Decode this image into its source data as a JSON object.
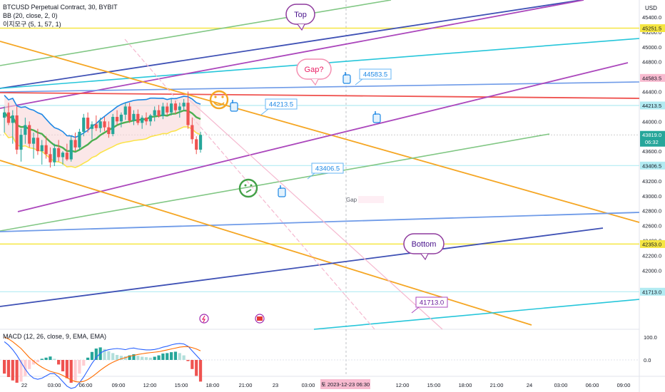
{
  "legend": {
    "line1": "BTCUSD Perpetual Contract, 30, BYBIT",
    "line2": "BB (20, close, 2, 0)",
    "line3": "이지모구 (5, 1, 57, 1)"
  },
  "macd_legend": "MACD (12, 26, close, 9, EMA, EMA)",
  "currency": "USD",
  "crosshair_label": "토 2023-12-23  06:30",
  "colors": {
    "up": "#26a69a",
    "down": "#ef5350",
    "bb_basis": "#4caf50",
    "bb_upper": "#1e88e5",
    "bb_lower": "#fbe34a",
    "bb_fill": "#f8d7d8",
    "yellow_level": "#f5e642",
    "orange": "#f5a623",
    "purple": "#ab47bc",
    "navy": "#3f51b5",
    "cyan": "#26c6da",
    "green": "#81c784",
    "blue": "#6f9be8",
    "red": "#ef5350",
    "pink": "#f5b8cf"
  },
  "chart_data": [
    {
      "type": "candlestick",
      "title": "BTCUSD Perpetual Contract, 30, BYBIT",
      "ylim": [
        41500,
        45700
      ],
      "y_ticks": [
        42000,
        42200,
        42400,
        42600,
        42800,
        43000,
        43200,
        43400,
        43600,
        43800,
        44000,
        44200,
        44400,
        44600,
        44800,
        45000,
        45200,
        45400
      ],
      "x_ticks": [
        "22",
        "03:00",
        "06:00",
        "09:00",
        "12:00",
        "15:00",
        "18:00",
        "21:00",
        "23",
        "03:00",
        "06:30",
        "12:00",
        "15:00",
        "18:00",
        "21:00",
        "24",
        "03:00",
        "06:00",
        "09:00"
      ],
      "price_labels": [
        {
          "value": 45251.5,
          "text": "45251.5",
          "kind": "yellow"
        },
        {
          "value": 44583.5,
          "text": "44583.5",
          "kind": "pink"
        },
        {
          "value": 44213.5,
          "text": "44213.5",
          "kind": "cyan"
        },
        {
          "value": 43819.0,
          "text": "43819.0",
          "time": "06:32",
          "kind": "current"
        },
        {
          "value": 43406.5,
          "text": "43406.5",
          "kind": "cyan"
        },
        {
          "value": 42353.0,
          "text": "42353.0",
          "kind": "yellow"
        },
        {
          "value": 41713.0,
          "text": "41713.0",
          "kind": "cyan"
        }
      ],
      "annotations": [
        {
          "text": "Top",
          "kind": "bubble"
        },
        {
          "text": "Gap?",
          "kind": "bubble-pink"
        },
        {
          "text": "44583.5",
          "kind": "callout"
        },
        {
          "text": "44213.5",
          "kind": "callout"
        },
        {
          "text": "43406.5",
          "kind": "callout"
        },
        {
          "text": "Bottom",
          "kind": "bubble"
        },
        {
          "text": "41713.0",
          "kind": "callout-purple"
        },
        {
          "text": "Gap",
          "kind": "label"
        }
      ],
      "candles": [
        [
          44050,
          44200,
          43850,
          44120
        ],
        [
          44120,
          44250,
          43950,
          43980
        ],
        [
          43980,
          44150,
          43700,
          44080
        ],
        [
          44080,
          44200,
          43560,
          43620
        ],
        [
          43620,
          43900,
          43460,
          43820
        ],
        [
          43820,
          44050,
          43700,
          43950
        ],
        [
          43950,
          44000,
          43650,
          43700
        ],
        [
          43700,
          43850,
          43500,
          43780
        ],
        [
          43780,
          43900,
          43550,
          43600
        ],
        [
          43600,
          43750,
          43420,
          43680
        ],
        [
          43680,
          43800,
          43500,
          43560
        ],
        [
          43560,
          43650,
          43380,
          43450
        ],
        [
          43450,
          43700,
          43400,
          43640
        ],
        [
          43640,
          43750,
          43460,
          43520
        ],
        [
          43520,
          43600,
          43420,
          43580
        ],
        [
          43580,
          43700,
          43470,
          43490
        ],
        [
          43490,
          43800,
          43460,
          43750
        ],
        [
          43750,
          43850,
          43600,
          43650
        ],
        [
          43650,
          43900,
          43620,
          43860
        ],
        [
          43860,
          44100,
          43800,
          44050
        ],
        [
          44050,
          44120,
          43850,
          43900
        ],
        [
          43900,
          44000,
          43760,
          43960
        ],
        [
          43960,
          44080,
          43870,
          43910
        ],
        [
          43910,
          44050,
          43850,
          44000
        ],
        [
          44000,
          44060,
          43870,
          43920
        ],
        [
          43920,
          44000,
          43780,
          43830
        ],
        [
          43830,
          44100,
          43800,
          44060
        ],
        [
          44060,
          44150,
          43950,
          44000
        ],
        [
          44000,
          44120,
          43920,
          44090
        ],
        [
          44090,
          44250,
          44020,
          44200
        ],
        [
          44200,
          44250,
          43980,
          44010
        ],
        [
          44010,
          44150,
          43950,
          44100
        ],
        [
          44100,
          44160,
          43950,
          43980
        ],
        [
          43980,
          44080,
          43900,
          44050
        ],
        [
          44050,
          44120,
          43950,
          44000
        ],
        [
          44000,
          44100,
          43940,
          44080
        ],
        [
          44080,
          44200,
          44000,
          44150
        ],
        [
          44150,
          44220,
          44050,
          44070
        ],
        [
          44070,
          44250,
          44030,
          44200
        ],
        [
          44200,
          44250,
          44080,
          44120
        ],
        [
          44120,
          44300,
          44080,
          44240
        ],
        [
          44240,
          44280,
          44100,
          44150
        ],
        [
          44150,
          44250,
          44050,
          44200
        ],
        [
          44200,
          44300,
          44150,
          44250
        ],
        [
          44250,
          44400,
          43900,
          43950
        ],
        [
          43950,
          44050,
          43700,
          43760
        ],
        [
          43760,
          43800,
          43560,
          43620
        ],
        [
          43620,
          43860,
          43580,
          43819
        ]
      ]
    },
    {
      "type": "bar",
      "title": "MACD (12, 26, close, 9, EMA, EMA)",
      "ylim": [
        -150,
        140
      ],
      "y_ticks": [
        100,
        0
      ],
      "histogram": [
        -60,
        -75,
        -90,
        -100,
        -95,
        -70,
        -40,
        -20,
        -10,
        5,
        10,
        15,
        5,
        -20,
        -50,
        -80,
        -100,
        -95,
        -60,
        -25,
        10,
        35,
        50,
        55,
        48,
        38,
        30,
        22,
        18,
        16,
        20,
        25,
        18,
        14,
        12,
        10,
        14,
        20,
        28,
        30,
        34,
        36,
        30,
        20,
        -5,
        -40,
        -70,
        -95
      ],
      "macd": [
        80,
        65,
        45,
        20,
        -10,
        -40,
        -65,
        -80,
        -85,
        -80,
        -70,
        -60,
        -60,
        -75,
        -95,
        -115,
        -125,
        -120,
        -100,
        -75,
        -45,
        -15,
        10,
        30,
        40,
        45,
        48,
        50,
        48,
        45,
        50,
        52,
        48,
        46,
        44,
        44,
        46,
        50,
        56,
        60,
        66,
        70,
        72,
        70,
        60,
        40,
        20,
        0
      ],
      "signal": [
        100,
        92,
        80,
        65,
        50,
        30,
        10,
        -5,
        -20,
        -32,
        -42,
        -50,
        -55,
        -60,
        -68,
        -78,
        -88,
        -95,
        -97,
        -94,
        -86,
        -74,
        -60,
        -45,
        -32,
        -20,
        -10,
        -2,
        5,
        10,
        16,
        20,
        24,
        27,
        30,
        32,
        34,
        36,
        40,
        44,
        48,
        52,
        56,
        58,
        58,
        54,
        48,
        40
      ]
    }
  ]
}
